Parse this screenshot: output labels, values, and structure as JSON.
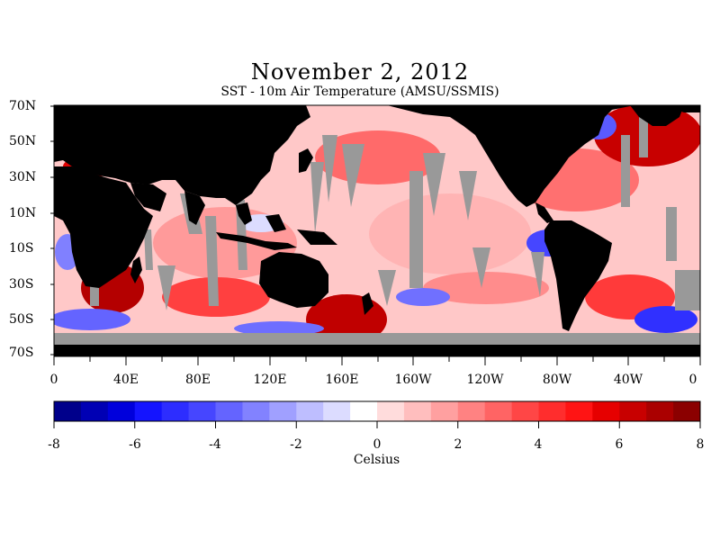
{
  "title": "November 2, 2012",
  "subtitle": "SST - 10m Air Temperature (AMSU/SSMIS)",
  "lat_labels": [
    "70N",
    "50N",
    "30N",
    "10N",
    "10S",
    "30S",
    "50S",
    "70S"
  ],
  "lon_labels": [
    "0",
    "40E",
    "80E",
    "120E",
    "160E",
    "160W",
    "120W",
    "80W",
    "40W",
    "0"
  ],
  "colorbar": {
    "ticks": [
      "-8",
      "-6",
      "-4",
      "-2",
      "0",
      "2",
      "4",
      "6",
      "8"
    ],
    "units": "Celsius",
    "min": -8,
    "max": 8,
    "colors": [
      "#00008b",
      "#0000b4",
      "#0000dc",
      "#1414ff",
      "#2d2dff",
      "#4646ff",
      "#6464ff",
      "#8282ff",
      "#a0a0ff",
      "#bebeff",
      "#dcdcff",
      "#ffffff",
      "#ffdcdc",
      "#ffbebe",
      "#ffa0a0",
      "#ff8282",
      "#ff6464",
      "#ff4646",
      "#ff2d2d",
      "#ff1414",
      "#e60000",
      "#c80000",
      "#aa0000",
      "#8b0000"
    ]
  },
  "colors": {
    "land": "#000000",
    "missing": "#999999",
    "background": "#ffffff"
  }
}
